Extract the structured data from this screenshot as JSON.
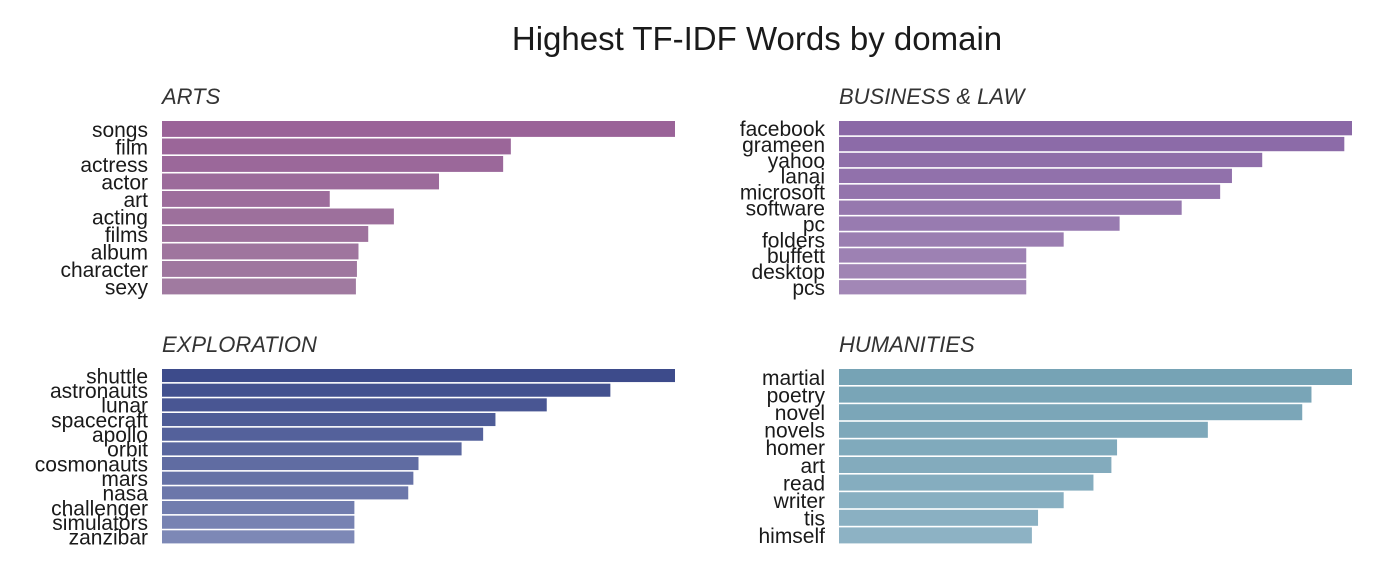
{
  "chart_data": {
    "type": "bar",
    "orientation": "horizontal",
    "title": "Highest TF-IDF Words by domain",
    "grid": false,
    "legend": "none",
    "facets": [
      {
        "name": "ARTS",
        "categories": [
          "songs",
          "film",
          "actress",
          "actor",
          "art",
          "acting",
          "films",
          "album",
          "character",
          "sexy"
        ],
        "values": [
          1.0,
          0.68,
          0.665,
          0.54,
          0.327,
          0.452,
          0.402,
          0.383,
          0.38,
          0.378
        ],
        "color_from": "#9a6398",
        "color_to": "#a07aa0"
      },
      {
        "name": "BUSINESS & LAW",
        "categories": [
          "facebook",
          "grameen",
          "yahoo",
          "lanai",
          "microsoft",
          "software",
          "pc",
          "folders",
          "buffett",
          "desktop",
          "pcs"
        ],
        "values": [
          1.0,
          0.985,
          0.825,
          0.766,
          0.743,
          0.668,
          0.547,
          0.438,
          0.365,
          0.365,
          0.365
        ],
        "color_from": "#8a68a6",
        "color_to": "#a287b6"
      },
      {
        "name": "EXPLORATION",
        "categories": [
          "shuttle",
          "astronauts",
          "lunar",
          "spacecraft",
          "apollo",
          "orbit",
          "cosmonauts",
          "mars",
          "nasa",
          "challenger",
          "simulators",
          "zanzibar"
        ],
        "values": [
          1.0,
          0.874,
          0.75,
          0.65,
          0.626,
          0.584,
          0.5,
          0.49,
          0.48,
          0.375,
          0.375,
          0.375
        ],
        "color_from": "#3d4b8b",
        "color_to": "#7d88b6"
      },
      {
        "name": "HUMANITIES",
        "categories": [
          "martial",
          "poetry",
          "novel",
          "novels",
          "homer",
          "art",
          "read",
          "writer",
          "tis",
          "himself"
        ],
        "values": [
          1.0,
          0.921,
          0.903,
          0.719,
          0.542,
          0.531,
          0.496,
          0.438,
          0.388,
          0.376
        ],
        "color_from": "#76a3b5",
        "color_to": "#8db2c4"
      }
    ]
  }
}
